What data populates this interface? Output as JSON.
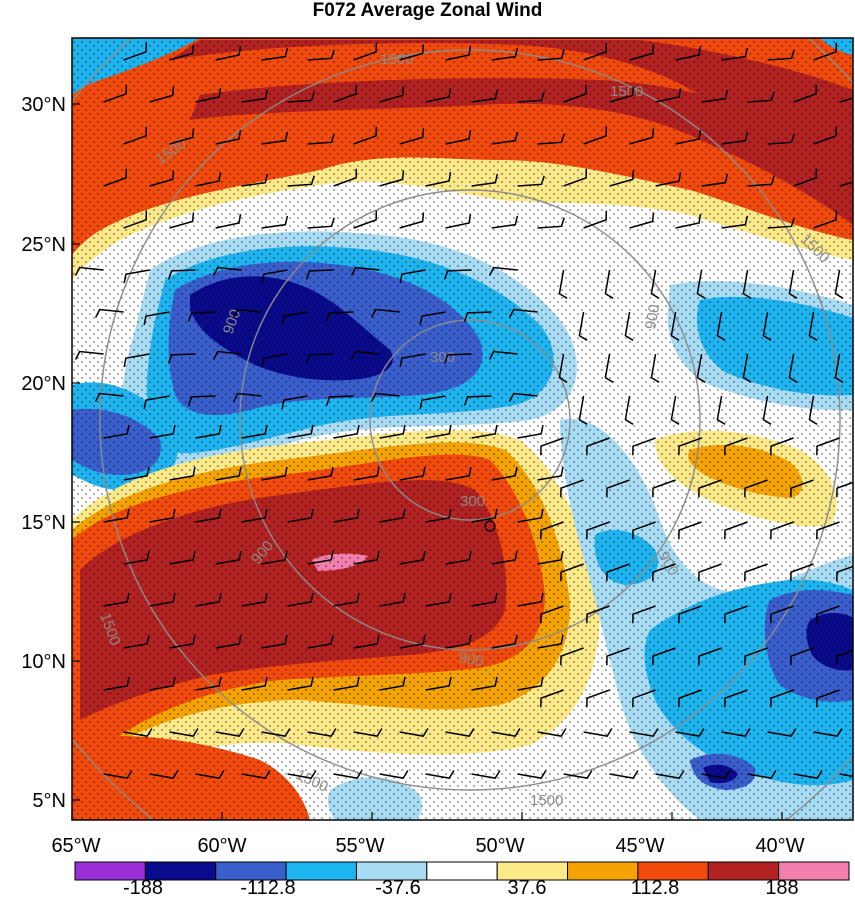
{
  "title": "F072 Average Zonal Wind",
  "lat_ticks": [
    "30°N",
    "25°N",
    "20°N",
    "15°N",
    "10°N",
    "5°N"
  ],
  "lon_ticks": [
    "65°W",
    "60°W",
    "55°W",
    "50°W",
    "45°W",
    "40°W"
  ],
  "colorbar": {
    "colors": [
      "#9b30d9",
      "#0a0a8c",
      "#3a5fcd",
      "#1eb4f0",
      "#a8dcf5",
      "#ffffff",
      "#fbe98a",
      "#f5a300",
      "#f24a0a",
      "#b22222",
      "#f27fae"
    ],
    "labels": [
      "-188",
      "-112.8",
      "-37.6",
      "37.6",
      "112.8",
      "188"
    ]
  },
  "contour_labels": [
    "1500",
    "1500",
    "1500",
    "1500",
    "900",
    "900",
    "900",
    "900",
    "300",
    "300",
    "900",
    "1500",
    "1500",
    "1500"
  ]
}
